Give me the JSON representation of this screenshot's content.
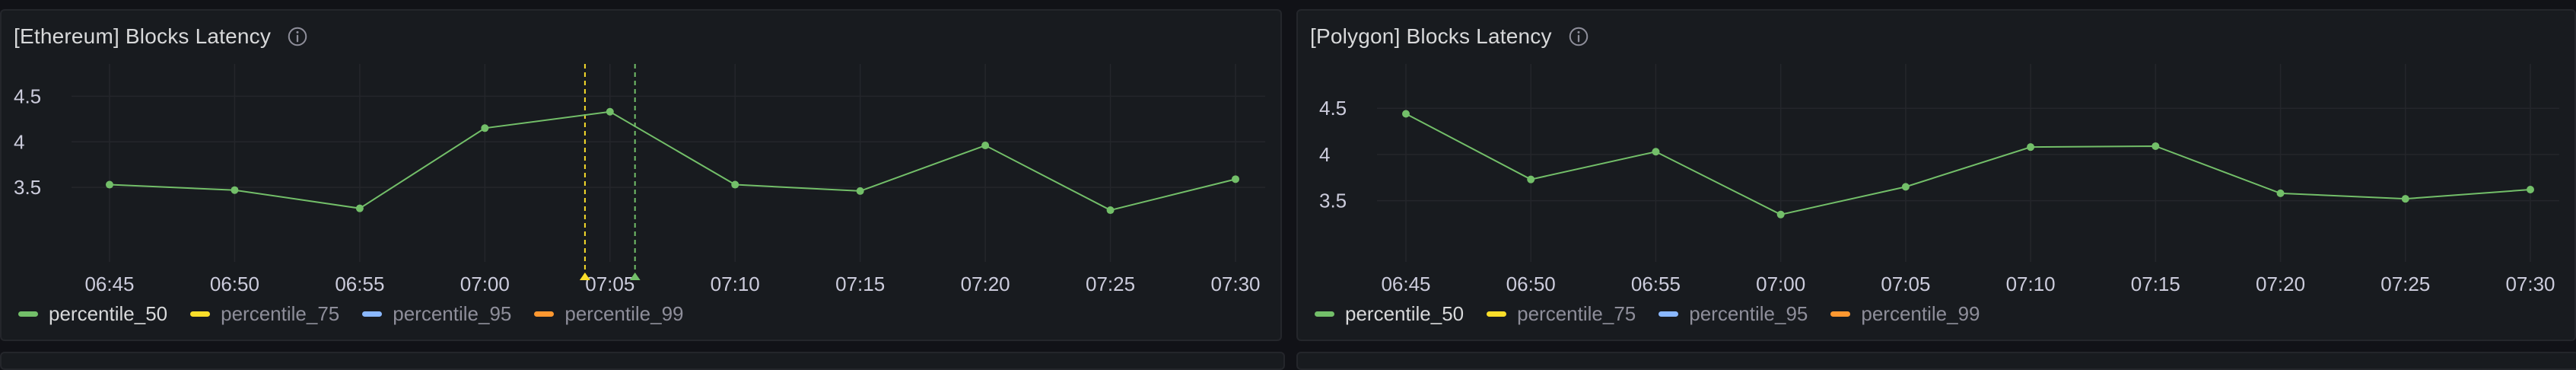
{
  "panels": [
    {
      "title": "[Ethereum] Blocks Latency",
      "icon": "info-icon",
      "legend": [
        {
          "label": "percentile_50",
          "color": "#73bf69",
          "active": true
        },
        {
          "label": "percentile_75",
          "color": "#fade2a",
          "active": false
        },
        {
          "label": "percentile_95",
          "color": "#8ab8ff",
          "active": false
        },
        {
          "label": "percentile_99",
          "color": "#ff9830",
          "active": false
        }
      ]
    },
    {
      "title": "[Polygon] Blocks Latency",
      "icon": "info-icon",
      "legend": [
        {
          "label": "percentile_50",
          "color": "#73bf69",
          "active": true
        },
        {
          "label": "percentile_75",
          "color": "#fade2a",
          "active": false
        },
        {
          "label": "percentile_95",
          "color": "#8ab8ff",
          "active": false
        },
        {
          "label": "percentile_99",
          "color": "#ff9830",
          "active": false
        }
      ]
    }
  ],
  "chart_data": [
    {
      "type": "line",
      "title": "[Ethereum] Blocks Latency",
      "x": [
        "06:45",
        "06:50",
        "06:55",
        "07:00",
        "07:05",
        "07:10",
        "07:15",
        "07:20",
        "07:25",
        "07:30"
      ],
      "x_minutes": [
        0,
        5,
        10,
        15,
        20,
        25,
        30,
        35,
        40,
        45
      ],
      "series": [
        {
          "name": "percentile_50",
          "color": "#73bf69",
          "points": [
            [
              0,
              3.53
            ],
            [
              5,
              3.47
            ],
            [
              10,
              3.27
            ],
            [
              15,
              4.15
            ],
            [
              20,
              4.33
            ],
            [
              25,
              3.53
            ],
            [
              30,
              3.46
            ],
            [
              35,
              3.96
            ],
            [
              40,
              3.25
            ],
            [
              45,
              3.59
            ]
          ]
        }
      ],
      "yticks": [
        "3.5",
        "4",
        "4.5"
      ],
      "ylim": [
        3.05,
        4.52
      ],
      "annotations": [
        {
          "x": 19.0,
          "color": "#fade2a"
        },
        {
          "x": 21.0,
          "color": "#73bf69"
        }
      ],
      "grid": true
    },
    {
      "type": "line",
      "title": "[Polygon] Blocks Latency",
      "x": [
        "06:45",
        "06:50",
        "06:55",
        "07:00",
        "07:05",
        "07:10",
        "07:15",
        "07:20",
        "07:25",
        "07:30"
      ],
      "x_minutes": [
        0,
        5,
        10,
        15,
        20,
        25,
        30,
        35,
        40,
        45
      ],
      "series": [
        {
          "name": "percentile_50",
          "color": "#73bf69",
          "points": [
            [
              0,
              4.44
            ],
            [
              5,
              3.73
            ],
            [
              10,
              4.03
            ],
            [
              15,
              3.35
            ],
            [
              20,
              3.65
            ],
            [
              25,
              4.08
            ],
            [
              30,
              4.09
            ],
            [
              35,
              3.58
            ],
            [
              40,
              3.52
            ],
            [
              45,
              3.62
            ]
          ]
        }
      ],
      "yticks": [
        "3.5",
        "4",
        "4.5"
      ],
      "ylim": [
        3.2,
        4.65
      ],
      "annotations": [],
      "grid": true
    }
  ]
}
